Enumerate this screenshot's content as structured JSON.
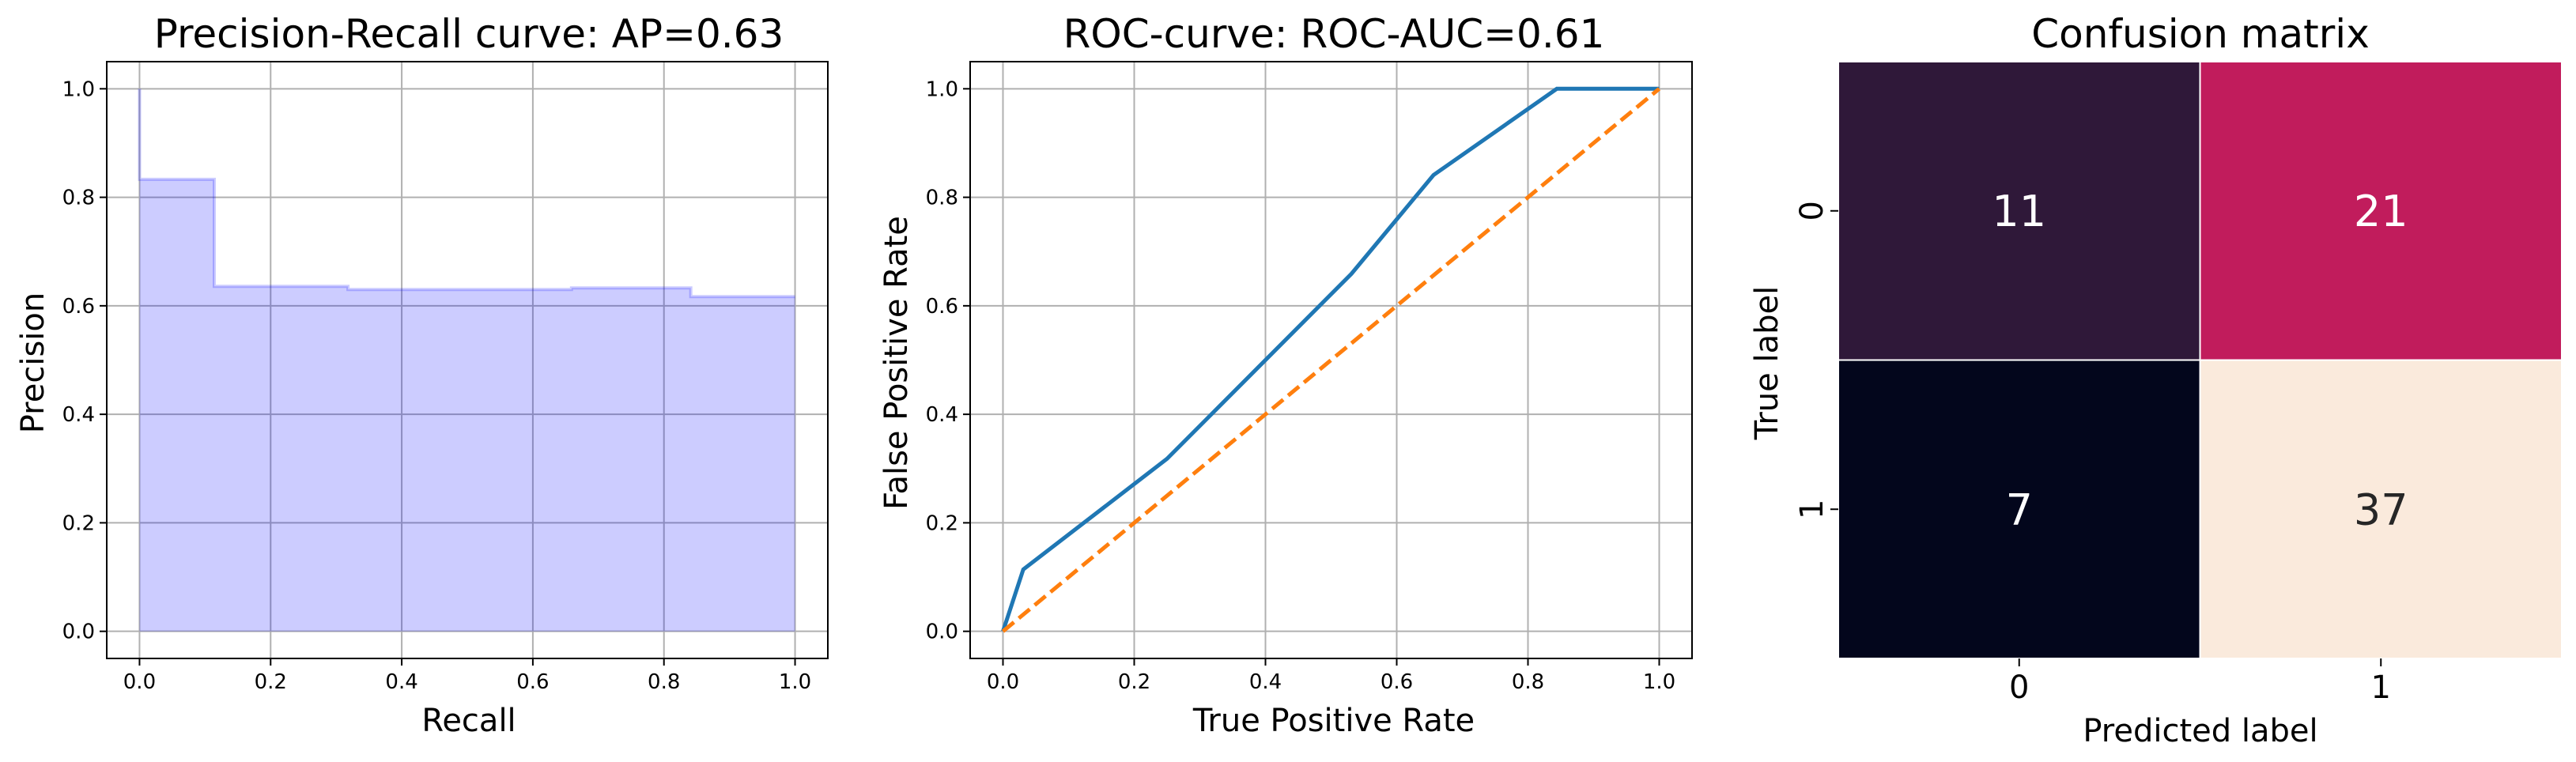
{
  "chart_data": [
    {
      "type": "area",
      "title": "Precision-Recall curve: AP=0.63",
      "xlabel": "Recall",
      "ylabel": "Precision",
      "xlim": [
        -0.05,
        1.05
      ],
      "ylim": [
        -0.05,
        1.05
      ],
      "xticks": [
        "0.0",
        "0.2",
        "0.4",
        "0.6",
        "0.8",
        "1.0"
      ],
      "yticks": [
        "0.0",
        "0.2",
        "0.4",
        "0.6",
        "0.8",
        "1.0"
      ],
      "grid": true,
      "step": "post",
      "color": "#0000ff",
      "fill_alpha": 0.2,
      "x": [
        0.0,
        0.0,
        0.114,
        0.318,
        0.659,
        0.841,
        1.0
      ],
      "y": [
        1.0,
        0.833,
        0.636,
        0.63,
        0.633,
        0.617,
        0.617
      ]
    },
    {
      "type": "line",
      "title": "ROC-curve: ROC-AUC=0.61",
      "xlabel": "True Positive Rate",
      "ylabel": "False Positive Rate",
      "xlim": [
        -0.05,
        1.05
      ],
      "ylim": [
        -0.05,
        1.05
      ],
      "xticks": [
        "0.0",
        "0.2",
        "0.4",
        "0.6",
        "0.8",
        "1.0"
      ],
      "yticks": [
        "0.0",
        "0.2",
        "0.4",
        "0.6",
        "0.8",
        "1.0"
      ],
      "grid": true,
      "series": [
        {
          "color": "#1f77b4",
          "style": "solid",
          "x": [
            0.0,
            0.031,
            0.25,
            0.531,
            0.656,
            0.844,
            1.0
          ],
          "y": [
            0.0,
            0.114,
            0.318,
            0.659,
            0.841,
            1.0,
            1.0
          ]
        },
        {
          "color": "#ff7f0e",
          "style": "dashed",
          "x": [
            0.0,
            1.0
          ],
          "y": [
            0.0,
            1.0
          ]
        }
      ]
    },
    {
      "type": "heatmap",
      "title": "Confusion matrix",
      "xlabel": "Predicted label",
      "ylabel": "True label",
      "x_categories": [
        "0",
        "1"
      ],
      "y_categories": [
        "0",
        "1"
      ],
      "values": [
        [
          11,
          21
        ],
        [
          7,
          37
        ]
      ],
      "cell_colors": [
        [
          "#2f1839",
          "#c11c5c"
        ],
        [
          "#03061c",
          "#faeadc"
        ]
      ],
      "text_colors": [
        [
          "#ffffff",
          "#ffffff"
        ],
        [
          "#ffffff",
          "#262626"
        ]
      ]
    }
  ]
}
